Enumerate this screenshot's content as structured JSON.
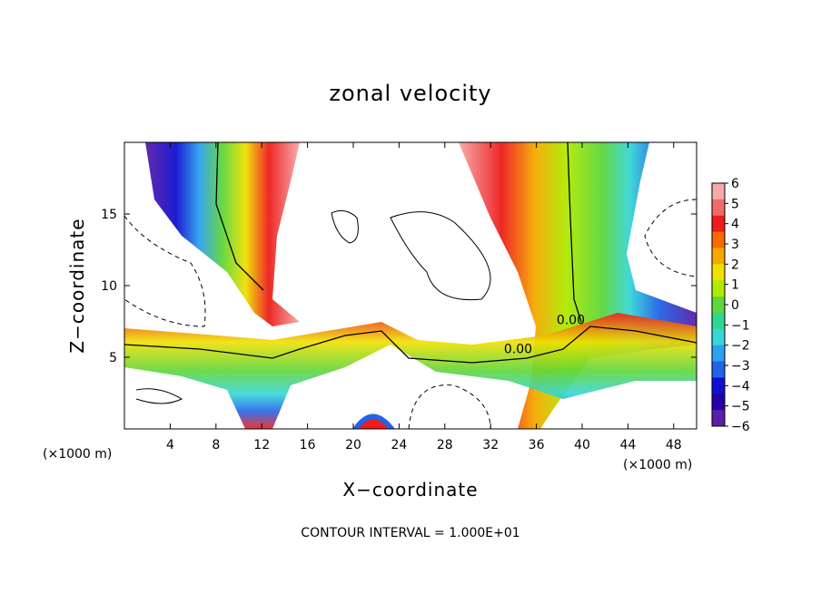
{
  "chart_data": {
    "type": "heatmap",
    "title": "zonal velocity",
    "xlabel": "X−coordinate",
    "ylabel": "Z−coordinate",
    "x_unit_left": "(×1000 m)",
    "x_unit_right": "(×1000 m)",
    "xlim": [
      0,
      50
    ],
    "ylim": [
      0,
      20
    ],
    "x_ticks": [
      4,
      8,
      12,
      16,
      20,
      24,
      28,
      32,
      36,
      40,
      44,
      48
    ],
    "y_ticks": [
      5,
      10,
      15
    ],
    "colorbar": {
      "min": -6,
      "max": 6,
      "tick_values": [
        6,
        5,
        4,
        3,
        2,
        1,
        0,
        -1,
        -2,
        -3,
        -4,
        -5,
        -6
      ],
      "tick_labels": [
        "6",
        "5",
        "4",
        "3",
        "2",
        "1",
        "0",
        "−1",
        "−2",
        "−3",
        "−4",
        "−5",
        "−6"
      ],
      "colors": [
        "#f7a8a8",
        "#f06a6a",
        "#ee1c1c",
        "#f66a00",
        "#f6a800",
        "#f0e000",
        "#b0ea00",
        "#5fd63a",
        "#30d690",
        "#36d6d6",
        "#2ea0f0",
        "#2264e8",
        "#1010d0",
        "#2400a8",
        "#5a1ea8"
      ]
    },
    "contour_labels": [
      {
        "text": "0.00",
        "x": 39.0,
        "z": 7.3
      },
      {
        "text": "0.00",
        "x": 34.4,
        "z": 5.3
      }
    ],
    "footer": "CONTOUR INTERVAL = 1.000E+01"
  }
}
